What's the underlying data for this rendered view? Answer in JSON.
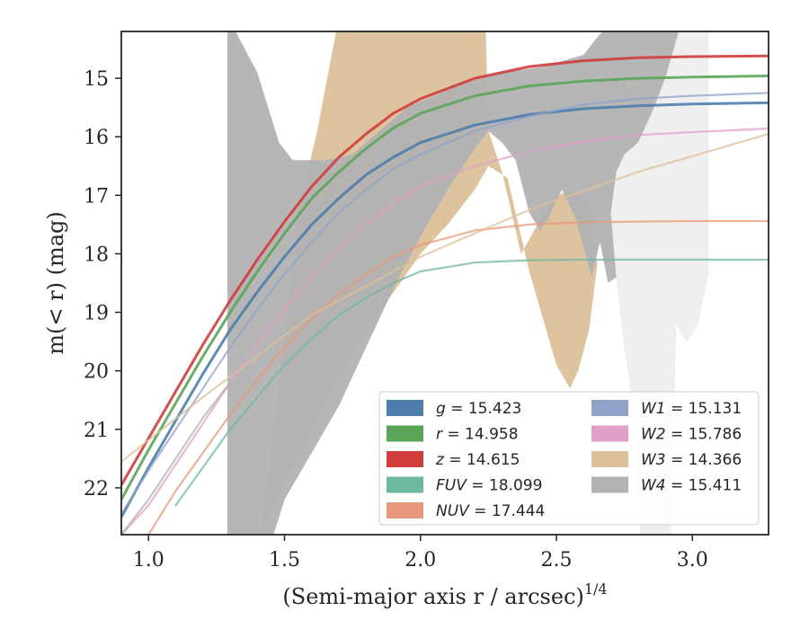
{
  "chart_data": {
    "type": "area",
    "xlabel": "(Semi-major axis r / arcsec)",
    "xlabel_exponent": "1/4",
    "ylabel": "m(< r) (mag)",
    "xlim": [
      0.9,
      3.28
    ],
    "ylim": [
      22.8,
      14.2
    ],
    "y_inverted": true,
    "x_ticks": [
      1.0,
      1.5,
      2.0,
      2.5,
      3.0
    ],
    "x_tick_labels": [
      "1.0",
      "1.5",
      "2.0",
      "2.5",
      "3.0"
    ],
    "y_ticks": [
      15,
      16,
      17,
      18,
      19,
      20,
      21,
      22
    ],
    "y_tick_labels": [
      "15",
      "16",
      "17",
      "18",
      "19",
      "20",
      "21",
      "22"
    ],
    "grid": false,
    "legend_position": "lower-right",
    "legend_columns": 2,
    "series": [
      {
        "name": "g = 15.423",
        "band": "g",
        "value_text": "15.423",
        "color": "#4c7dab",
        "x": [
          0.9,
          1.0,
          1.1,
          1.2,
          1.3,
          1.4,
          1.5,
          1.6,
          1.7,
          1.8,
          1.9,
          2.0,
          2.2,
          2.4,
          2.6,
          2.8,
          3.0,
          3.28
        ],
        "y": [
          22.5,
          21.65,
          20.85,
          20.05,
          19.3,
          18.65,
          18.05,
          17.5,
          17.05,
          16.65,
          16.35,
          16.1,
          15.8,
          15.62,
          15.52,
          15.47,
          15.44,
          15.42
        ]
      },
      {
        "name": "r = 14.958",
        "band": "r",
        "value_text": "14.958",
        "color": "#5aa55a",
        "x": [
          0.9,
          1.0,
          1.1,
          1.2,
          1.3,
          1.4,
          1.5,
          1.6,
          1.7,
          1.8,
          1.9,
          2.0,
          2.2,
          2.4,
          2.6,
          2.8,
          3.0,
          3.28
        ],
        "y": [
          22.2,
          21.35,
          20.55,
          19.75,
          19.0,
          18.3,
          17.65,
          17.05,
          16.6,
          16.2,
          15.85,
          15.6,
          15.3,
          15.13,
          15.05,
          15.0,
          14.98,
          14.96
        ]
      },
      {
        "name": "z = 14.615",
        "band": "z",
        "value_text": "14.615",
        "color": "#d03c3c",
        "x": [
          0.9,
          1.0,
          1.1,
          1.2,
          1.3,
          1.4,
          1.5,
          1.6,
          1.7,
          1.8,
          1.9,
          2.0,
          2.2,
          2.4,
          2.6,
          2.8,
          3.0,
          3.28
        ],
        "y": [
          21.95,
          21.15,
          20.35,
          19.55,
          18.8,
          18.1,
          17.45,
          16.85,
          16.35,
          15.95,
          15.6,
          15.35,
          15.0,
          14.8,
          14.7,
          14.65,
          14.63,
          14.62
        ]
      },
      {
        "name": "FUV = 18.099",
        "band": "FUV",
        "value_text": "18.099",
        "color": "#6db8a0",
        "x": [
          1.1,
          1.2,
          1.3,
          1.4,
          1.5,
          1.6,
          1.7,
          1.8,
          1.9,
          2.0,
          2.2,
          2.4,
          2.6,
          2.8,
          3.0,
          3.28
        ],
        "y": [
          22.3,
          21.65,
          21.0,
          20.45,
          19.9,
          19.45,
          19.05,
          18.75,
          18.5,
          18.3,
          18.15,
          18.11,
          18.1,
          18.1,
          18.1,
          18.1
        ]
      },
      {
        "name": "NUV = 17.444",
        "band": "NUV",
        "value_text": "17.444",
        "color": "#e8987a",
        "x": [
          1.0,
          1.1,
          1.2,
          1.3,
          1.4,
          1.5,
          1.6,
          1.7,
          1.8,
          1.9,
          2.0,
          2.2,
          2.4,
          2.6,
          2.8,
          3.0,
          3.28
        ],
        "y": [
          22.8,
          22.05,
          21.4,
          20.75,
          20.15,
          19.6,
          19.1,
          18.7,
          18.35,
          18.05,
          17.85,
          17.6,
          17.5,
          17.46,
          17.45,
          17.44,
          17.44
        ]
      },
      {
        "name": "W1 = 15.131",
        "band": "W1",
        "value_text": "15.131",
        "color": "#8fa3c8",
        "x": [
          0.9,
          1.0,
          1.1,
          1.2,
          1.3,
          1.4,
          1.5,
          1.6,
          1.7,
          1.8,
          1.9,
          2.0,
          2.2,
          2.4,
          2.6,
          2.8,
          3.0,
          3.28
        ],
        "y": [
          22.45,
          21.7,
          21.0,
          20.3,
          19.6,
          18.95,
          18.35,
          17.8,
          17.3,
          16.9,
          16.55,
          16.3,
          15.9,
          15.65,
          15.45,
          15.35,
          15.3,
          15.25
        ]
      },
      {
        "name": "W2 = 15.786",
        "band": "W2",
        "value_text": "15.786",
        "color": "#e0a0c8",
        "x": [
          0.9,
          1.0,
          1.1,
          1.2,
          1.3,
          1.4,
          1.5,
          1.6,
          1.7,
          1.8,
          1.9,
          2.0,
          2.2,
          2.4,
          2.6,
          2.8,
          3.0,
          3.28
        ],
        "y": [
          22.8,
          22.3,
          21.6,
          20.9,
          20.2,
          19.55,
          18.95,
          18.4,
          17.9,
          17.5,
          17.15,
          16.85,
          16.5,
          16.25,
          16.08,
          15.97,
          15.92,
          15.86
        ]
      },
      {
        "name": "W3 = 14.366",
        "band": "W3",
        "value_text": "14.366",
        "color": "#dcc09a",
        "x": [
          0.9,
          1.2,
          1.6,
          2.0,
          2.4,
          2.8,
          3.28
        ],
        "y": [
          21.55,
          20.45,
          19.05,
          18.05,
          17.25,
          16.6,
          15.95
        ]
      },
      {
        "name": "W4 = 15.411",
        "band": "W4",
        "value_text": "15.411",
        "color": "#b2b2b2",
        "x": [
          0.9,
          1.0,
          1.1,
          1.2,
          1.3
        ],
        "y": [
          22.8,
          22.2,
          21.5,
          20.8,
          20.2
        ]
      }
    ],
    "shaded_regions": [
      {
        "name": "W3 band",
        "color": "#dcc09a",
        "x": [
          1.47,
          1.6,
          1.7,
          1.85,
          2.0,
          2.1,
          2.2,
          2.25,
          2.3,
          2.37,
          2.45,
          2.5,
          2.55,
          2.6,
          2.62,
          2.6,
          2.55,
          2.5,
          2.45,
          2.4,
          2.35,
          2.3,
          2.27,
          2.25,
          2.24,
          1.69,
          1.65,
          1.6,
          1.55,
          1.5,
          1.45,
          1.4
        ],
        "y_lower": [
          22.8,
          21.4,
          20.6,
          19.3,
          18.1,
          17.4,
          16.5,
          16.1,
          16.3,
          17.2,
          18.1,
          18.8,
          19.2,
          19.6,
          20.3,
          22.8,
          22.8,
          22.8,
          22.8,
          22.8,
          22.8,
          22.8,
          22.8,
          22.8,
          22.8,
          22.8,
          22.8,
          22.8,
          22.8,
          22.8,
          22.8,
          22.8
        ],
        "polygon": [
          [
            1.41,
            22.8
          ],
          [
            1.55,
            21.5
          ],
          [
            1.7,
            20.1
          ],
          [
            1.85,
            19.0
          ],
          [
            2.0,
            18.0
          ],
          [
            2.1,
            17.5
          ],
          [
            2.2,
            16.9
          ],
          [
            2.25,
            16.5
          ],
          [
            2.32,
            16.7
          ],
          [
            2.4,
            18.3
          ],
          [
            2.45,
            19.1
          ],
          [
            2.5,
            19.9
          ],
          [
            2.55,
            20.3
          ],
          [
            2.58,
            20.0
          ],
          [
            2.62,
            19.3
          ],
          [
            2.65,
            18.2
          ],
          [
            2.62,
            17.2
          ],
          [
            2.57,
            16.9
          ],
          [
            2.5,
            17.0
          ],
          [
            2.43,
            17.5
          ],
          [
            2.37,
            18.0
          ],
          [
            2.3,
            16.6
          ],
          [
            2.25,
            15.9
          ],
          [
            2.24,
            14.2
          ],
          [
            1.69,
            14.2
          ],
          [
            1.62,
            15.9
          ],
          [
            1.55,
            17.3
          ],
          [
            1.5,
            19.4
          ],
          [
            1.45,
            21.5
          ]
        ]
      },
      {
        "name": "W4 band",
        "color": "#b2b2b2",
        "polygon": [
          [
            1.29,
            14.2
          ],
          [
            1.32,
            14.2
          ],
          [
            1.4,
            14.9
          ],
          [
            1.48,
            16.1
          ],
          [
            1.53,
            16.4
          ],
          [
            1.65,
            16.4
          ],
          [
            1.75,
            16.3
          ],
          [
            1.85,
            15.9
          ],
          [
            1.95,
            15.5
          ],
          [
            2.05,
            15.3
          ],
          [
            2.15,
            15.1
          ],
          [
            2.3,
            14.9
          ],
          [
            2.45,
            14.8
          ],
          [
            2.6,
            14.6
          ],
          [
            2.65,
            14.3
          ],
          [
            2.67,
            14.2
          ],
          [
            3.06,
            14.2
          ],
          [
            3.06,
            18.3
          ],
          [
            3.02,
            19.2
          ],
          [
            2.98,
            19.5
          ],
          [
            2.94,
            19.2
          ],
          [
            2.92,
            22.8
          ],
          [
            2.81,
            22.8
          ],
          [
            2.78,
            20.5
          ],
          [
            2.75,
            19.6
          ],
          [
            2.72,
            18.4
          ],
          [
            2.69,
            18.5
          ],
          [
            2.66,
            17.8
          ],
          [
            2.63,
            18.4
          ],
          [
            2.6,
            17.9
          ],
          [
            2.57,
            17.4
          ],
          [
            2.52,
            16.9
          ],
          [
            2.47,
            17.4
          ],
          [
            2.44,
            17.6
          ],
          [
            2.4,
            17.3
          ],
          [
            2.35,
            16.4
          ],
          [
            2.3,
            16.1
          ],
          [
            2.25,
            15.9
          ],
          [
            2.2,
            16.2
          ],
          [
            2.1,
            16.9
          ],
          [
            2.0,
            17.7
          ],
          [
            1.9,
            18.6
          ],
          [
            1.8,
            19.6
          ],
          [
            1.7,
            20.6
          ],
          [
            1.6,
            21.4
          ],
          [
            1.5,
            22.2
          ],
          [
            1.46,
            22.8
          ],
          [
            1.29,
            22.8
          ]
        ]
      }
    ],
    "light_region": {
      "color": "#efefef",
      "polygon": [
        [
          2.81,
          22.8
        ],
        [
          2.92,
          22.8
        ],
        [
          2.94,
          19.2
        ],
        [
          2.98,
          19.5
        ],
        [
          3.02,
          19.2
        ],
        [
          3.06,
          18.3
        ],
        [
          3.06,
          14.2
        ],
        [
          2.95,
          14.2
        ],
        [
          2.9,
          15.0
        ],
        [
          2.85,
          15.6
        ],
        [
          2.8,
          16.1
        ],
        [
          2.75,
          16.3
        ],
        [
          2.72,
          16.6
        ],
        [
          2.7,
          17.3
        ],
        [
          2.72,
          18.4
        ],
        [
          2.75,
          19.6
        ],
        [
          2.78,
          20.5
        ]
      ]
    }
  },
  "legend": {
    "items": [
      {
        "sym": "g",
        "val": "15.423",
        "color": "#4c7dab"
      },
      {
        "sym": "r",
        "val": "14.958",
        "color": "#5aa55a"
      },
      {
        "sym": "z",
        "val": "14.615",
        "color": "#d03c3c"
      },
      {
        "sym": "FUV",
        "val": "18.099",
        "color": "#6db8a0"
      },
      {
        "sym": "NUV",
        "val": "17.444",
        "color": "#e8987a"
      },
      {
        "sym": "W1",
        "val": "15.131",
        "color": "#8fa3c8"
      },
      {
        "sym": "W2",
        "val": "15.786",
        "color": "#e0a0c8"
      },
      {
        "sym": "W3",
        "val": "14.366",
        "color": "#dcc09a"
      },
      {
        "sym": "W4",
        "val": "15.411",
        "color": "#b2b2b2"
      }
    ]
  }
}
